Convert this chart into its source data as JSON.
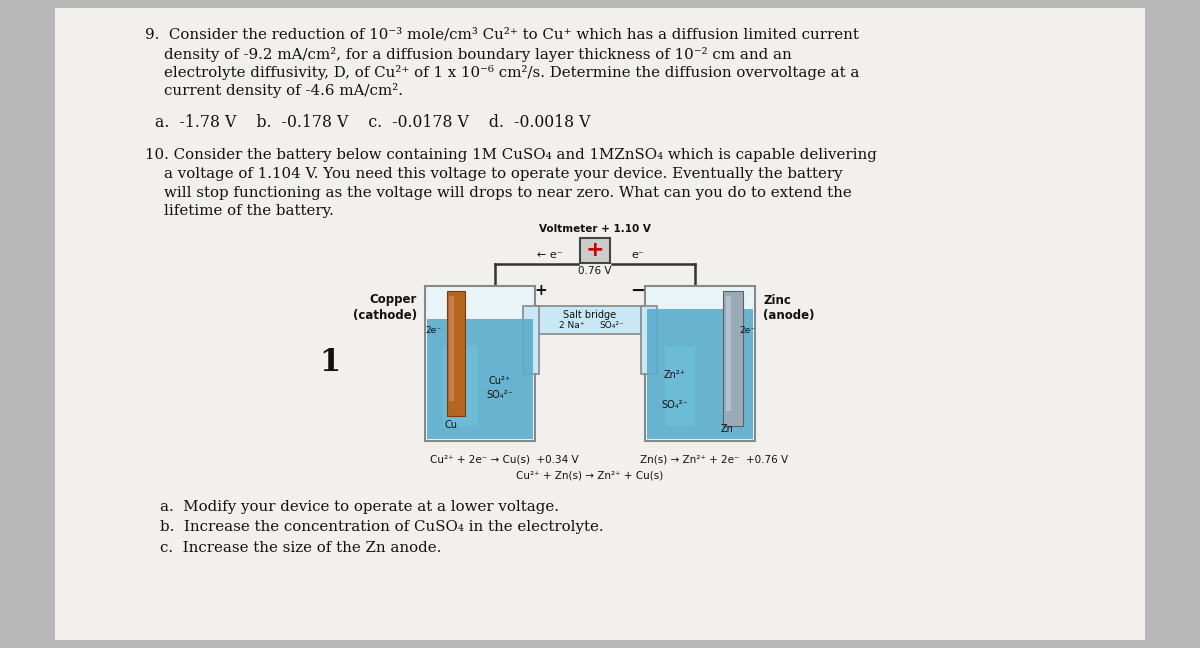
{
  "bg_color": "#b8b8b8",
  "paper_color": "#f2f0ec",
  "text_color": "#111111",
  "q9_line1": "9.  Consider the reduction of 10⁻³ mole/cm³ Cu²⁺ to Cu⁺ which has a diffusion limited current",
  "q9_line2": "    density of -9.2 mA/cm², for a diffusion boundary layer thickness of 10⁻² cm and an",
  "q9_line3": "    electrolyte diffusivity, D, of Cu²⁺ of 1 x 10⁻⁶ cm²/s. Determine the diffusion overvoltage at a",
  "q9_line4": "    current density of -4.6 mA/cm².",
  "q9_ans": "a.  -1.78 V    b.  -0.178 V    c.  -0.0178 V    d.  -0.0018 V",
  "q10_line1": "10. Consider the battery below containing 1M CuSO₄ and 1MZnSO₄ which is capable delivering",
  "q10_line2": "    a voltage of 1.104 V. You need this voltage to operate your device. Eventually the battery",
  "q10_line3": "    will stop functioning as the voltage will drops to near zero. What can you do to extend the",
  "q10_line4": "    lifetime of the battery.",
  "voltmeter_text": "Voltmeter + 1.10 V",
  "e_left": "← e⁻",
  "e_right": "e⁻",
  "voltage_076": "0.76 V",
  "copper_label": "Copper\n(cathode)",
  "zinc_label": "Zinc\n(anode)",
  "plus_sign": "+",
  "minus_sign": "−",
  "salt_bridge": "Salt bridge",
  "na_label": "2 Na⁺",
  "so4_label": "SO₄²⁻",
  "number_1": "1",
  "rxn_cu": "Cu²⁺ + 2e⁻ → Cu(s)  +0.34 V",
  "rxn_zn": "Zn(s) → Zn²⁺ + 2e⁻  +0.76 V",
  "rxn_overall": "Cu²⁺ + Zn(s) → Zn²⁺ + Cu(s)",
  "ans_a": "a.  Modify your device to operate at a lower voltage.",
  "ans_b": "b.  Increase the concentration of CuSO₄ in the electrolyte.",
  "ans_c": "c.  Increase the size of the Zn anode.",
  "liq_color": "#5aadcc",
  "liq_color2": "#70c0dd",
  "cu_color": "#b5651d",
  "zn_color": "#9aabb8",
  "beaker_edge": "#888888",
  "wire_color": "#333333"
}
